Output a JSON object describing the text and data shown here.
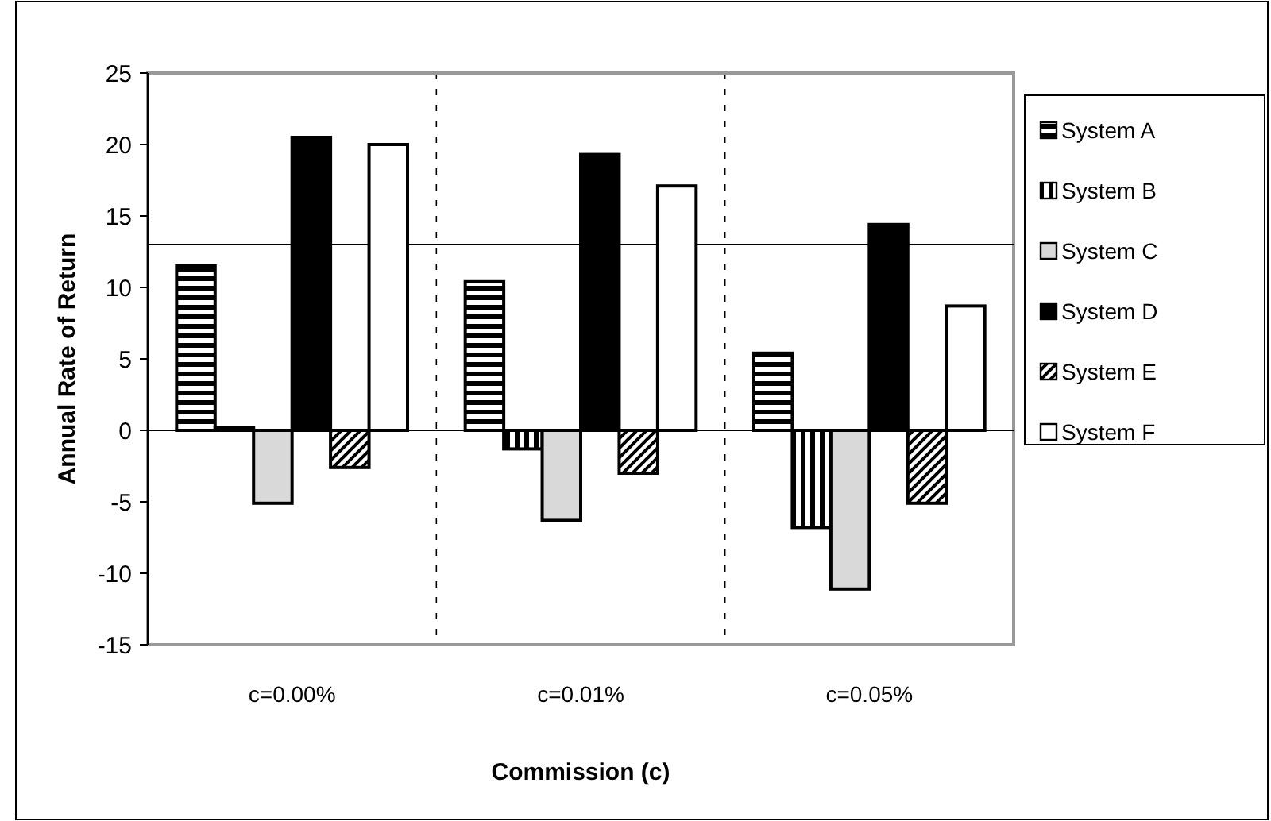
{
  "chart_data": {
    "type": "bar",
    "xlabel": "Commission (c)",
    "ylabel": "Annual Rate of Return",
    "categories": [
      "c=0.00%",
      "c=0.01%",
      "c=0.05%"
    ],
    "series": [
      {
        "name": "System A",
        "color": "#000000",
        "values": [
          11.5,
          10.4,
          5.4
        ]
      },
      {
        "name": "System B",
        "color": "#000000",
        "values": [
          0.2,
          -1.3,
          -6.8
        ]
      },
      {
        "name": "System C",
        "color": "#d9d9d9",
        "values": [
          -5.1,
          -6.3,
          -11.1
        ]
      },
      {
        "name": "System D",
        "color": "#000000",
        "values": [
          20.5,
          19.3,
          14.4
        ]
      },
      {
        "name": "System E",
        "color": "#000000",
        "values": [
          -2.6,
          -3.0,
          -5.1
        ]
      },
      {
        "name": "System F",
        "color": "#ffffff",
        "values": [
          20.0,
          17.1,
          8.7
        ]
      }
    ],
    "ylim": [
      -15,
      25
    ],
    "yticks": [
      -15,
      -10,
      -5,
      0,
      5,
      10,
      15,
      20,
      25
    ],
    "grid": "x",
    "legend": "right",
    "ref_lines": [
      {
        "axis": "y",
        "value": 13.0,
        "color": "#000000"
      }
    ]
  }
}
